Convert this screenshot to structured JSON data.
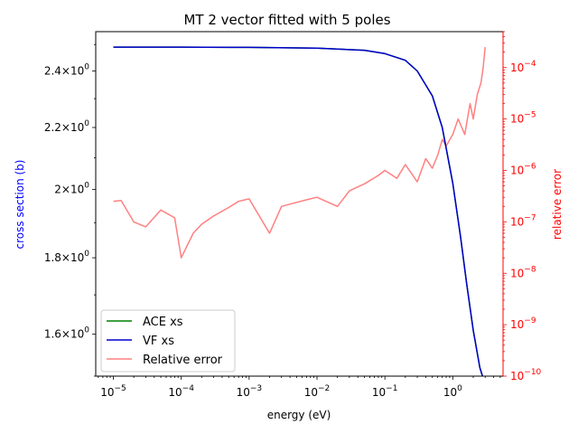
{
  "chart_data": {
    "type": "line",
    "title": "MT 2 vector fitted with 5 poles",
    "xlabel": "energy (eV)",
    "ylabel_left": "cross section (b)",
    "ylabel_right": "relative error",
    "xscale": "log",
    "yscale_left": "log",
    "yscale_right": "log",
    "xlim": [
      5.5e-06,
      5.5
    ],
    "ylim_left": [
      1.5,
      2.55
    ],
    "ylim_right": [
      1e-10,
      0.0005
    ],
    "x_ticks": [
      {
        "value": 1e-05,
        "base": "10",
        "exp": "−5"
      },
      {
        "value": 0.0001,
        "base": "10",
        "exp": "−4"
      },
      {
        "value": 0.001,
        "base": "10",
        "exp": "−3"
      },
      {
        "value": 0.01,
        "base": "10",
        "exp": "−2"
      },
      {
        "value": 0.1,
        "base": "10",
        "exp": "−1"
      },
      {
        "value": 1,
        "base": "10",
        "exp": "0"
      }
    ],
    "y_left_ticks": [
      {
        "value": 2.4,
        "mant": "2.4×10",
        "exp": "0"
      },
      {
        "value": 2.2,
        "mant": "2.2×10",
        "exp": "0"
      },
      {
        "value": 2.0,
        "mant": "2×10",
        "exp": "0"
      },
      {
        "value": 1.8,
        "mant": "1.8×10",
        "exp": "0"
      },
      {
        "value": 1.6,
        "mant": "1.6×10",
        "exp": "0"
      }
    ],
    "y_right_ticks": [
      {
        "value": 0.0001,
        "base": "10",
        "exp": "−4"
      },
      {
        "value": 1e-05,
        "base": "10",
        "exp": "−5"
      },
      {
        "value": 1e-06,
        "base": "10",
        "exp": "−6"
      },
      {
        "value": 1e-07,
        "base": "10",
        "exp": "−7"
      },
      {
        "value": 1e-08,
        "base": "10",
        "exp": "−8"
      },
      {
        "value": 1e-09,
        "base": "10",
        "exp": "−9"
      },
      {
        "value": 1e-10,
        "base": "10",
        "exp": "−10"
      }
    ],
    "series": [
      {
        "name": "ACE xs",
        "color": "#008000",
        "axis": "left",
        "x": [
          1e-05,
          0.0001,
          0.001,
          0.01,
          0.05,
          0.1,
          0.2,
          0.3,
          0.5,
          0.7,
          1.0,
          1.3,
          1.6,
          2.0,
          2.5,
          3.0
        ],
        "y": [
          2.49,
          2.49,
          2.489,
          2.486,
          2.478,
          2.465,
          2.44,
          2.4,
          2.31,
          2.2,
          2.02,
          1.86,
          1.73,
          1.61,
          1.52,
          1.48
        ]
      },
      {
        "name": "VF xs",
        "color": "#0000cc",
        "axis": "left",
        "x": [
          1e-05,
          0.0001,
          0.001,
          0.01,
          0.05,
          0.1,
          0.2,
          0.3,
          0.5,
          0.7,
          1.0,
          1.3,
          1.6,
          2.0,
          2.5,
          3.0
        ],
        "y": [
          2.49,
          2.49,
          2.489,
          2.486,
          2.478,
          2.465,
          2.44,
          2.4,
          2.31,
          2.2,
          2.02,
          1.86,
          1.73,
          1.61,
          1.52,
          1.48
        ]
      },
      {
        "name": "Relative error",
        "color": "#ff8080",
        "axis": "right",
        "x": [
          1e-05,
          1.3e-05,
          2e-05,
          3e-05,
          5e-05,
          8e-05,
          0.0001,
          0.00015,
          0.0002,
          0.0003,
          0.0005,
          0.0007,
          0.001,
          0.002,
          0.003,
          0.005,
          0.008,
          0.01,
          0.02,
          0.03,
          0.05,
          0.08,
          0.1,
          0.15,
          0.2,
          0.3,
          0.4,
          0.5,
          0.6,
          0.7,
          0.8,
          1.0,
          1.2,
          1.5,
          1.8,
          2.0,
          2.3,
          2.6,
          2.8,
          3.0
        ],
        "y": [
          2.5e-07,
          2.6e-07,
          1e-07,
          8e-08,
          1.7e-07,
          1.2e-07,
          2e-08,
          6e-08,
          9e-08,
          1.3e-07,
          1.9e-07,
          2.5e-07,
          2.8e-07,
          6e-08,
          2e-07,
          2.4e-07,
          2.8e-07,
          3e-07,
          2e-07,
          4e-07,
          5.5e-07,
          8e-07,
          1e-06,
          7e-07,
          1.3e-06,
          6e-07,
          1.7e-06,
          1.1e-06,
          2e-06,
          4e-06,
          3e-06,
          5e-06,
          1e-05,
          5e-06,
          2e-05,
          1e-05,
          3e-05,
          5e-05,
          0.0001,
          0.00025
        ]
      }
    ],
    "legend_position": "lower-left",
    "colors": {
      "left_axis": "#0000ff",
      "right_axis": "#ff0000",
      "text": "#000000"
    }
  }
}
